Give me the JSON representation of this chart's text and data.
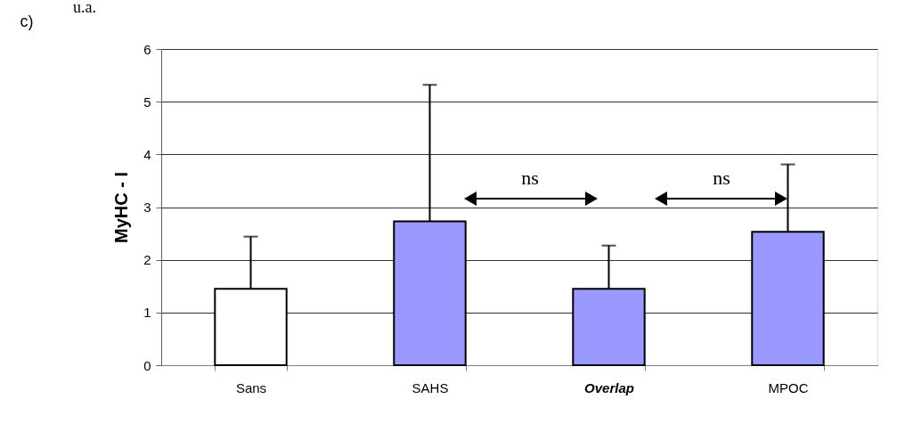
{
  "chart_data": {
    "type": "bar",
    "ylabel": "MyHC - I",
    "categories": [
      "Sans",
      "SAHS",
      "Overlap",
      "MPOC"
    ],
    "values": [
      1.45,
      2.73,
      1.45,
      2.53
    ],
    "colors": [
      "#ffffff",
      "#9999ff",
      "#9999ff",
      "#9999ff"
    ],
    "errors": [
      [
        1.45,
        2.44
      ],
      [
        2.73,
        5.32
      ],
      [
        1.45,
        2.27
      ],
      [
        2.53,
        3.81
      ]
    ],
    "ylim": [
      0,
      6
    ],
    "yticks": [
      0,
      1,
      2,
      3,
      4,
      5,
      6
    ],
    "grid": "y",
    "annotations": [
      "c)",
      "u.a.",
      "ns",
      "ns"
    ]
  }
}
